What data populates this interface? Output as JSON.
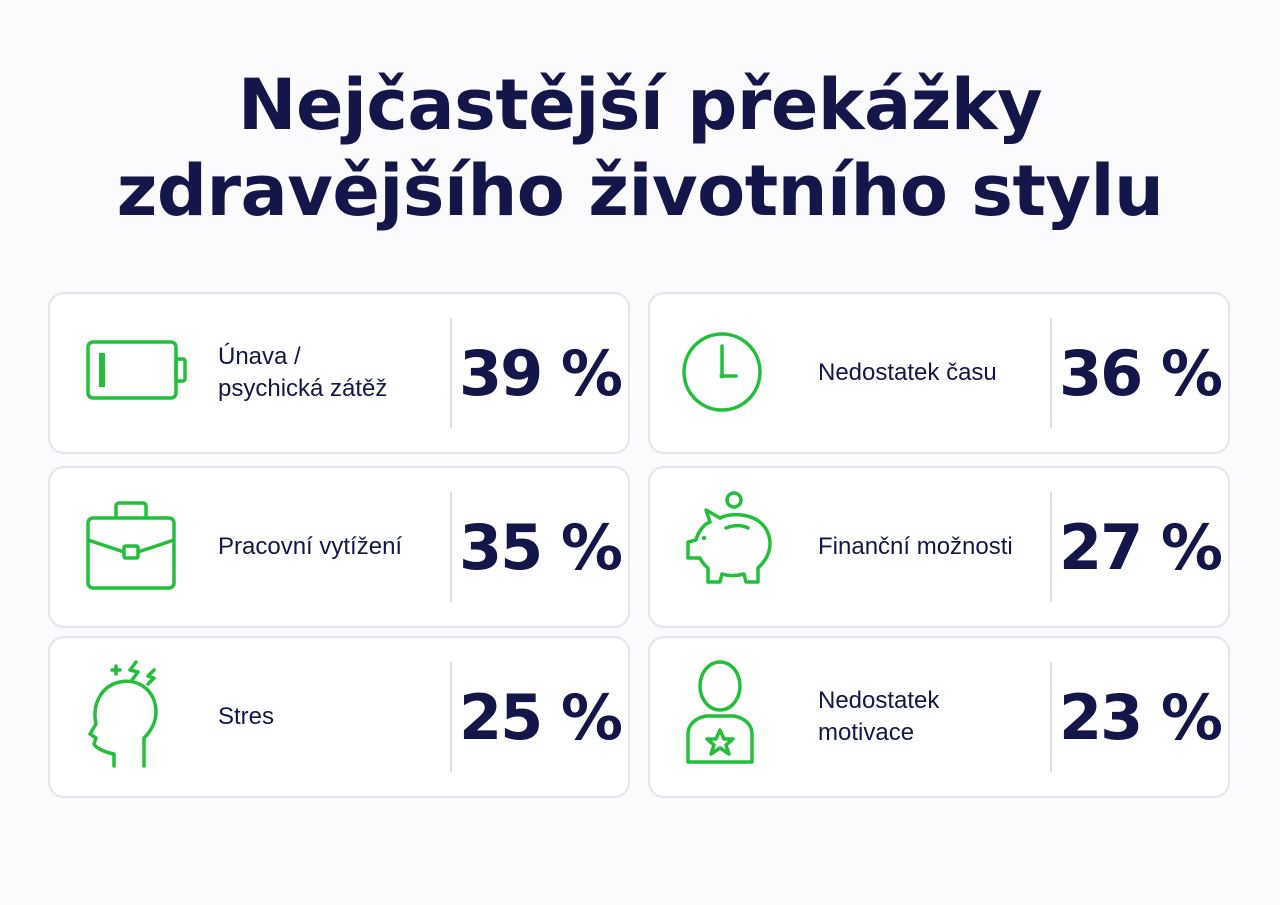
{
  "title": {
    "line1": "Nejčastější překážky",
    "line2": "zdravějšího životního stylu"
  },
  "accent_color": "#22c03a",
  "text_color": "#14164a",
  "items": [
    {
      "label": "Únava /\npsychická zátěž",
      "value": "39 %",
      "icon": "battery-low-icon"
    },
    {
      "label": "Nedostatek času",
      "value": "36 %",
      "icon": "clock-icon"
    },
    {
      "label": "Pracovní vytížení",
      "value": "35 %",
      "icon": "briefcase-icon"
    },
    {
      "label": "Finanční možnosti",
      "value": "27 %",
      "icon": "piggy-bank-icon"
    },
    {
      "label": "Stres",
      "value": "25 %",
      "icon": "stressed-head-icon"
    },
    {
      "label": "Nedostatek motivace",
      "value": "23 %",
      "icon": "person-star-icon"
    }
  ]
}
